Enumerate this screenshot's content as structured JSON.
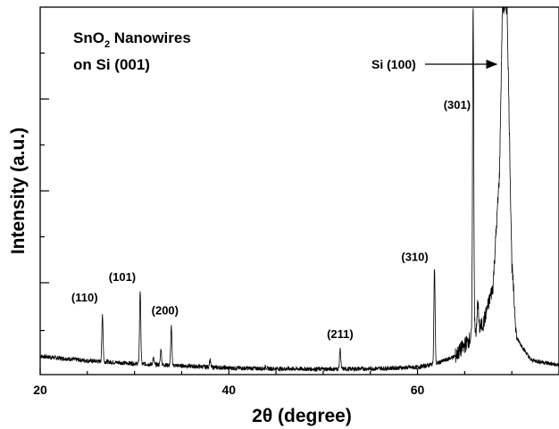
{
  "chart_data": {
    "type": "line",
    "title": "",
    "xlabel": "2θ (degree)",
    "ylabel": "Intensity (a.u.)",
    "xlim": [
      20,
      75
    ],
    "ylim": [
      0,
      100
    ],
    "xticks": [
      20,
      40,
      60
    ],
    "yticks_labeled": false,
    "grid": false,
    "legend": "none",
    "sample_label": {
      "line1_prefix": "SnO",
      "line1_sub": "2",
      "line1_suffix": " Nanowires",
      "line2": "on Si (001)"
    },
    "peaks": [
      {
        "label": "(110)",
        "x": 26.6,
        "y": 16.5
      },
      {
        "label": "(101)",
        "x": 30.6,
        "y": 23.0
      },
      {
        "label": "(200)",
        "x": 33.9,
        "y": 13.0
      },
      {
        "label": "(211)",
        "x": 51.8,
        "y": 7.0
      },
      {
        "label": "(310)",
        "x": 61.8,
        "y": 29.0
      },
      {
        "label": "(301)",
        "x": 65.9,
        "y": 100.0
      },
      {
        "label": "Si (100)",
        "x": 69.2,
        "y": 100.0
      }
    ],
    "minor_peaks": [
      {
        "x": 32.0,
        "y": 4.5
      },
      {
        "x": 32.8,
        "y": 7.0
      },
      {
        "x": 38.0,
        "y": 4.0
      },
      {
        "x": 43.9,
        "y": 2.2
      },
      {
        "x": 45.0,
        "y": 1.5
      },
      {
        "x": 55.0,
        "y": 1.5
      },
      {
        "x": 66.4,
        "y": 20.0
      }
    ],
    "baseline_points": [
      [
        20,
        5.0
      ],
      [
        25,
        3.8
      ],
      [
        30,
        3.0
      ],
      [
        35,
        2.4
      ],
      [
        40,
        1.8
      ],
      [
        45,
        1.6
      ],
      [
        50,
        1.5
      ],
      [
        55,
        1.6
      ],
      [
        60,
        2.0
      ],
      [
        62,
        3.0
      ],
      [
        64,
        5.0
      ],
      [
        65,
        8.0
      ],
      [
        66,
        11.0
      ],
      [
        67,
        14.0
      ],
      [
        68,
        24.0
      ],
      [
        68.7,
        55.0
      ],
      [
        69.0,
        100.0
      ],
      [
        69.5,
        100.0
      ],
      [
        70.0,
        30.0
      ],
      [
        70.5,
        10.0
      ],
      [
        72,
        4.0
      ],
      [
        75,
        2.5
      ]
    ],
    "annotation": {
      "text": "Si (100)",
      "arrow_to_x": 68.6
    }
  }
}
